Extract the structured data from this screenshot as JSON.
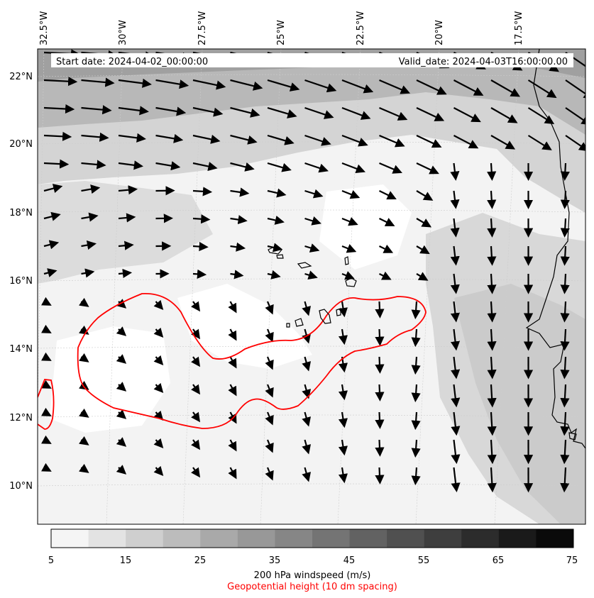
{
  "header": {
    "start_date": "Start date: 2024-04-02_00:00:00",
    "valid_date": "Valid_date: 2024-04-03T16:00:00.00"
  },
  "longitude_labels": [
    "32.5°W",
    "30°W",
    "27.5°W",
    "25°W",
    "22.5°W",
    "20°W",
    "17.5°W"
  ],
  "latitude_labels": [
    "22°N",
    "20°N",
    "18°N",
    "16°N",
    "14°N",
    "12°N",
    "10°N"
  ],
  "colorbar": {
    "ticks": [
      "5",
      "15",
      "25",
      "35",
      "45",
      "55",
      "65",
      "75"
    ],
    "bin_values": [
      5,
      10,
      15,
      20,
      25,
      30,
      35,
      40,
      45,
      50,
      55,
      60,
      65,
      70,
      75
    ],
    "colors": [
      "#f5f5f5",
      "#e3e3e3",
      "#cfcfcf",
      "#bcbcbc",
      "#a9a9a9",
      "#989898",
      "#868686",
      "#747474",
      "#626262",
      "#505050",
      "#3e3e3e",
      "#2c2c2c",
      "#1a1a1a",
      "#0a0a0a"
    ],
    "label": "200 hPa windspeed (m/s)",
    "sublabel": "Geopotential height (10 dm spacing)",
    "sublabel_color": "#ff0000"
  },
  "contour_color": "#ff0000",
  "coast_color": "#000000"
}
